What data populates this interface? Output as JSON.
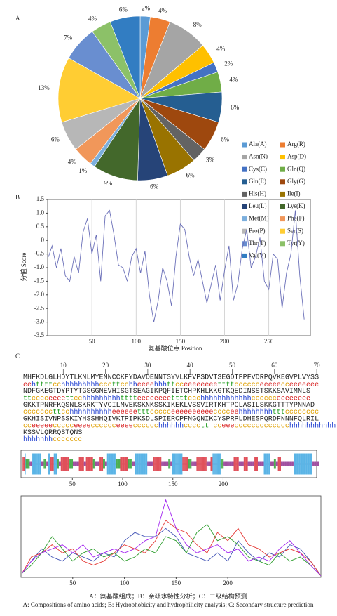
{
  "caption": [
    "A：氨基酸组成；B：亲疏水特性分析；C：二级结构预测",
    "A: Compositions of amino acids; B: Hydrophobicity and hydrophilicity analysis; C: Secondary structure prediction"
  ],
  "chart_data": [
    {
      "type": "pie",
      "label": "A",
      "categories": [
        "Ala(A)",
        "Arg(R)",
        "Asn(N)",
        "Asp(D)",
        "Cys(C)",
        "Gln(Q)",
        "Glu(E)",
        "Gly(G)",
        "His(H)",
        "Ile(I)",
        "Leu(L)",
        "Lys(K)",
        "Met(M)",
        "Phe(F)",
        "Pro(P)",
        "Ser(S)",
        "Thr(T)",
        "Tyr(Y)",
        "Val(V)"
      ],
      "values": [
        2,
        4,
        8,
        4,
        2,
        4,
        6,
        6,
        3,
        6,
        6,
        9,
        1,
        4,
        6,
        13,
        7,
        4,
        6
      ],
      "value_labels": [
        "2%",
        "4%",
        "8%",
        "4%",
        "2%",
        "4%",
        "6%",
        "6%",
        "3%",
        "6%",
        "6%",
        "9%",
        "1%",
        "4%",
        "6%",
        "13%",
        "7%",
        "4%",
        "6%"
      ],
      "colors": [
        "#5b9bd5",
        "#ed7d31",
        "#a5a5a5",
        "#ffc000",
        "#4472c4",
        "#70ad47",
        "#255e91",
        "#9e480e",
        "#636363",
        "#997300",
        "#264478",
        "#43682b",
        "#7cafdd",
        "#f1975a",
        "#b7b7b7",
        "#ffcd33",
        "#698ed0",
        "#8cc168",
        "#327dc2"
      ]
    },
    {
      "type": "line",
      "label": "B",
      "xlabel": "氨基酸位点 Position",
      "ylabel": "分值 Score",
      "x": [
        1,
        5,
        10,
        15,
        20,
        25,
        30,
        35,
        40,
        45,
        50,
        55,
        60,
        65,
        70,
        75,
        80,
        85,
        90,
        95,
        100,
        105,
        110,
        115,
        120,
        125,
        130,
        135,
        140,
        145,
        150,
        155,
        160,
        165,
        170,
        175,
        180,
        185,
        190,
        195,
        200,
        205,
        210,
        215,
        220,
        225,
        230,
        235,
        240,
        245,
        250,
        255,
        260,
        265,
        270,
        275,
        280,
        285,
        290
      ],
      "series": [
        {
          "color": "#6a6fb8",
          "values": [
            -0.6,
            -0.2,
            -1.0,
            -0.3,
            -1.3,
            -1.5,
            -0.6,
            -1.2,
            0.3,
            0.8,
            -0.5,
            0.2,
            -1.5,
            0.9,
            1.1,
            0.2,
            -0.9,
            -1.0,
            -1.5,
            -0.6,
            -0.3,
            -1.2,
            -0.4,
            -2.0,
            -3.0,
            -2.2,
            -1.0,
            -1.5,
            -2.4,
            -0.6,
            0.6,
            0.4,
            -0.6,
            -1.3,
            -0.7,
            -1.5,
            -2.3,
            -1.6,
            -0.9,
            -2.2,
            -1.1,
            -0.2,
            -2.2,
            -1.6,
            -0.3,
            0.4,
            -1.0,
            -0.6,
            0.1,
            -1.5,
            -1.8,
            -0.5,
            -0.7,
            -2.5,
            -1.2,
            -0.5,
            1.1,
            -1.3,
            -2.9
          ]
        }
      ],
      "xlim": [
        0,
        297
      ],
      "ylim": [
        -3.5,
        1.5
      ],
      "xticks": [
        50,
        100,
        150,
        200,
        250
      ],
      "yticks": [
        1.5,
        {
          "value": 1,
          "label": "1.0"
        },
        0.5,
        0,
        -0.5,
        {
          "value": -1,
          "label": "-1.0"
        },
        -1.5,
        {
          "value": -2,
          "label": "-2.0"
        },
        -2.5,
        {
          "value": -3,
          "label": "-3.0"
        },
        -3.5
      ],
      "grid": true
    },
    {
      "type": "sequence",
      "label": "C",
      "ruler": [
        10,
        20,
        30,
        40,
        50,
        60,
        70
      ],
      "sequence": [
        "MHFKDLGLHDYTLKNLMYENNCCKFYDAVDENNTSYVLKFVPSDVTSEGDTFPFVDRPQVKEGVPLVYSS",
        "NDFGKEGTDYPTYTGSGGNEVHISGTSEAGIKPQFIETCHPKHLKKGTKQEDINSSTSKKSAVIMNLS",
        "GKKTPNRFKQSNLSKRKTYVCILMVEKSKNKSSKIKEKLVSSVIRTKHTPCLASILSKKGTTTYPNNAD",
        "GKHISIVNPSSKIYHSSHHQIVKTPIPKSDLSPIERCPFNGQNIKCYSPRPLDHESPQRDFNNNFQLRIL",
        "KSSVLQRRQSTQNS"
      ],
      "structure": [
        "eehttttcchhhhhhhhhcccttcchheeeehhhttcceeeeeeeettttcccccceeeeecceeeeeee",
        "ttcccceeeettcchhhhhhhhhtttteeeeeeeettttccchhhhhhhhhhhhcccccceeeeeeee",
        "cccccccttcchhhhhhhhhheeeeeetttccccceeeeeeeeeecccceehhhhhhhhtttcccccccc",
        "cceeeeeccccceeeecccccceeeecccccchhhhhhcccctt cceeeccccccccccccchhhhhhhhhhh",
        "hhhhhhhccccccc"
      ],
      "colors": {
        "h": "#1f3fd0",
        "e": "#d82020",
        "t": "#1a9a1a",
        "c": "#e0a000"
      }
    },
    {
      "type": "strip",
      "xlim": [
        1,
        291
      ],
      "xticks": [
        50,
        100,
        150,
        200
      ],
      "colors": {
        "h": "#5ab4e6",
        "e": "#e0505a",
        "t": "#4caf50",
        "c": "#a050a0"
      }
    },
    {
      "type": "line",
      "x": [
        1,
        10,
        20,
        30,
        40,
        50,
        60,
        70,
        80,
        90,
        100,
        110,
        120,
        130,
        140,
        150,
        160,
        170,
        180,
        190,
        200,
        210,
        220,
        230,
        240,
        250,
        260,
        270,
        280,
        290
      ],
      "series": [
        {
          "color": "#3f51b5",
          "values": [
            0.05,
            0.2,
            0.35,
            0.25,
            0.2,
            0.3,
            0.25,
            0.2,
            0.3,
            0.25,
            0.45,
            0.55,
            0.5,
            0.5,
            0.6,
            0.5,
            0.3,
            0.25,
            0.2,
            0.3,
            0.2,
            0.45,
            0.3,
            0.2,
            0.3,
            0.25,
            0.4,
            0.35,
            0.2,
            0.02
          ]
        },
        {
          "color": "#e53935",
          "values": [
            0.05,
            0.25,
            0.3,
            0.4,
            0.3,
            0.35,
            0.2,
            0.15,
            0.2,
            0.3,
            0.4,
            0.35,
            0.3,
            0.45,
            0.7,
            0.6,
            0.55,
            0.4,
            0.3,
            0.55,
            0.45,
            0.6,
            0.4,
            0.35,
            0.25,
            0.3,
            0.35,
            0.3,
            0.2,
            0.02
          ]
        },
        {
          "color": "#2e9e2e",
          "values": [
            0.05,
            0.15,
            0.3,
            0.5,
            0.35,
            0.2,
            0.3,
            0.35,
            0.25,
            0.3,
            0.2,
            0.25,
            0.35,
            0.3,
            0.5,
            0.45,
            0.3,
            0.55,
            0.65,
            0.45,
            0.5,
            0.4,
            0.25,
            0.2,
            0.15,
            0.3,
            0.2,
            0.25,
            0.15,
            0.02
          ]
        },
        {
          "color": "#a020f0",
          "values": [
            0.05,
            0.2,
            0.3,
            0.35,
            0.4,
            0.3,
            0.4,
            0.25,
            0.3,
            0.35,
            0.3,
            0.35,
            0.45,
            0.5,
            0.95,
            0.6,
            0.4,
            0.3,
            0.35,
            0.4,
            0.3,
            0.35,
            0.2,
            0.25,
            0.2,
            0.35,
            0.45,
            0.3,
            0.15,
            0.02
          ]
        }
      ],
      "xlim": [
        0,
        290
      ],
      "ylim": [
        0,
        1
      ],
      "xticks": [
        50,
        100,
        150,
        200
      ]
    }
  ]
}
